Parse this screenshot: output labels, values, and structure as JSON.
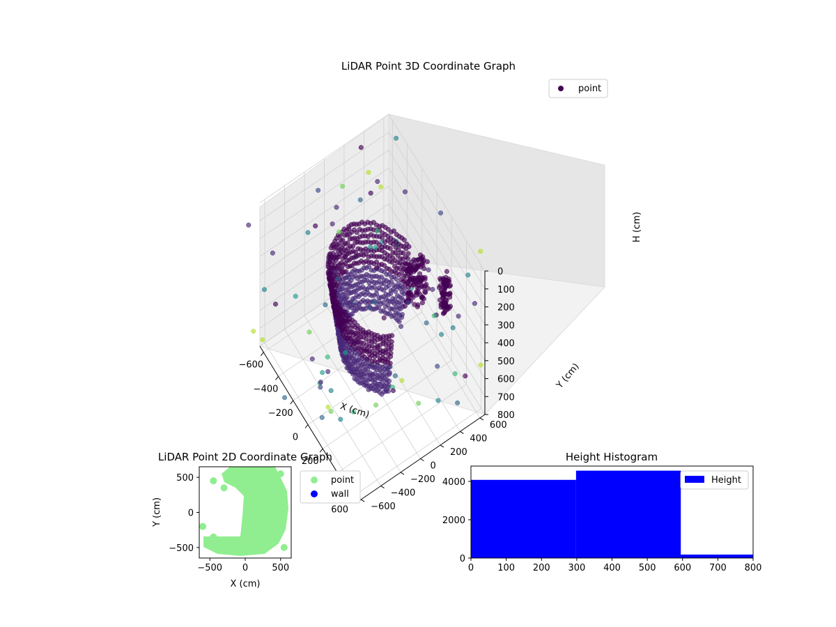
{
  "chart_data": [
    {
      "type": "scatter",
      "projection": "3d",
      "title": "LiDAR Point 3D Coordinate Graph",
      "xlabel": "X (cm)",
      "ylabel": "Y (cm)",
      "zlabel": "H (cm)",
      "xlim": [
        -650,
        650
      ],
      "ylim": [
        -650,
        650
      ],
      "zlim": [
        800,
        0
      ],
      "z_axis_inverted": true,
      "xticks": [
        "−600",
        "−400",
        "−200",
        "0",
        "200",
        "400",
        "600"
      ],
      "yticks": [
        "−600",
        "−400",
        "−200",
        "0",
        "200",
        "400",
        "600"
      ],
      "zticks": [
        "0",
        "100",
        "200",
        "300",
        "400",
        "500",
        "600",
        "700",
        "800"
      ],
      "colormap": "viridis",
      "grid": true,
      "legend": {
        "entries": [
          "point"
        ],
        "placement": "top-right"
      },
      "series": [
        {
          "name": "point",
          "color": "#440154",
          "description_points": [
            {
              "x": -480,
              "y": 300,
              "z": 250
            },
            {
              "x": -300,
              "y": 250,
              "z": 280
            },
            {
              "x": -100,
              "y": 200,
              "z": 300
            },
            {
              "x": 100,
              "y": 150,
              "z": 320
            },
            {
              "x": 300,
              "y": 50,
              "z": 330
            },
            {
              "x": 420,
              "y": -150,
              "z": 340
            },
            {
              "x": 380,
              "y": -350,
              "z": 350
            },
            {
              "x": 200,
              "y": -450,
              "z": 360
            },
            {
              "x": -50,
              "y": -500,
              "z": 380
            },
            {
              "x": -200,
              "y": -450,
              "z": 400
            },
            {
              "x": 250,
              "y": 100,
              "z": 60
            },
            {
              "x": 200,
              "y": 300,
              "z": 80
            },
            {
              "x": 450,
              "y": 400,
              "z": 80
            },
            {
              "x": 500,
              "y": 0,
              "z": 650
            },
            {
              "x": -100,
              "y": 500,
              "z": 500
            },
            {
              "x": 0,
              "y": -200,
              "z": 700
            }
          ]
        }
      ]
    },
    {
      "type": "scatter",
      "title": "LiDAR Point 2D Coordinate Graph",
      "xlabel": "X (cm)",
      "ylabel": "Y (cm)",
      "xlim": [
        -650,
        650
      ],
      "ylim": [
        -650,
        650
      ],
      "xticks": [
        "−500",
        "0",
        "500"
      ],
      "yticks": [
        "500",
        "0",
        "−500"
      ],
      "legend": {
        "entries": [
          "point",
          "wall"
        ],
        "placement": "outside-right"
      },
      "series": [
        {
          "name": "point",
          "color": "#90ee90",
          "description_points": [
            {
              "x": 100,
              "y": 600
            },
            {
              "x": 300,
              "y": 400
            },
            {
              "x": 450,
              "y": 100
            },
            {
              "x": 400,
              "y": -250
            },
            {
              "x": 200,
              "y": -450
            },
            {
              "x": -100,
              "y": -500
            },
            {
              "x": -450,
              "y": -350
            },
            {
              "x": -600,
              "y": -200
            },
            {
              "x": -300,
              "y": 350
            },
            {
              "x": -450,
              "y": 450
            },
            {
              "x": 500,
              "y": 550
            },
            {
              "x": 550,
              "y": -500
            }
          ]
        },
        {
          "name": "wall",
          "color": "#0000ff",
          "points": []
        }
      ]
    },
    {
      "type": "bar",
      "subtype": "histogram",
      "title": "Height Histogram",
      "xlim": [
        0,
        800
      ],
      "ylim": [
        0,
        4800
      ],
      "xticks": [
        "0",
        "100",
        "200",
        "300",
        "400",
        "500",
        "600",
        "700",
        "800"
      ],
      "yticks": [
        "0",
        "2000",
        "4000"
      ],
      "legend": {
        "entries": [
          "Height"
        ],
        "placement": "top-right"
      },
      "series": [
        {
          "name": "Height",
          "color": "#0000ff",
          "bins": [
            {
              "start": 0,
              "end": 298,
              "count": 4080
            },
            {
              "start": 298,
              "end": 595,
              "count": 4560
            },
            {
              "start": 595,
              "end": 800,
              "count": 180
            }
          ]
        }
      ]
    }
  ]
}
